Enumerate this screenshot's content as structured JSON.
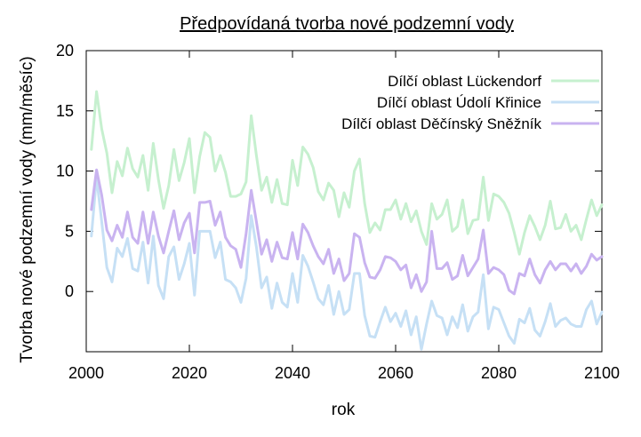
{
  "chart_data": {
    "type": "line",
    "title": "Předpovídaná tvorba nové podzemní vody",
    "xlabel": "rok",
    "ylabel": "Tvorba nové podzemní vody (mm/měsíc)",
    "xlim": [
      2000,
      2100
    ],
    "ylim": [
      -5,
      20
    ],
    "xticks": [
      2000,
      2020,
      2040,
      2060,
      2080,
      2100
    ],
    "yticks": [
      0,
      5,
      10,
      15,
      20
    ],
    "grid": false,
    "legend_position": "top-right",
    "series": [
      {
        "name": "Dílčí oblast Lückendorf",
        "color": "#c6f0cf",
        "x": [
          2001,
          2002,
          2003,
          2004,
          2005,
          2006,
          2007,
          2008,
          2009,
          2010,
          2011,
          2012,
          2013,
          2014,
          2015,
          2016,
          2017,
          2018,
          2019,
          2020,
          2021,
          2022,
          2023,
          2024,
          2025,
          2026,
          2027,
          2028,
          2029,
          2030,
          2031,
          2032,
          2033,
          2034,
          2035,
          2036,
          2037,
          2038,
          2039,
          2040,
          2041,
          2042,
          2043,
          2044,
          2045,
          2046,
          2047,
          2048,
          2049,
          2050,
          2051,
          2052,
          2053,
          2054,
          2055,
          2056,
          2057,
          2058,
          2059,
          2060,
          2061,
          2062,
          2063,
          2064,
          2065,
          2066,
          2067,
          2068,
          2069,
          2070,
          2071,
          2072,
          2073,
          2074,
          2075,
          2076,
          2077,
          2078,
          2079,
          2080,
          2081,
          2082,
          2083,
          2084,
          2085,
          2086,
          2087,
          2088,
          2089,
          2090,
          2091,
          2092,
          2093,
          2094,
          2095,
          2096,
          2097,
          2098,
          2099,
          2100
        ],
        "y": [
          11.8,
          16.6,
          13.5,
          11.5,
          8.2,
          10.8,
          9.6,
          11.9,
          10.2,
          9.5,
          11.3,
          8.4,
          12.3,
          9.3,
          6.9,
          8.8,
          11.8,
          9.2,
          10.7,
          12.7,
          8.2,
          11.2,
          13.2,
          12.8,
          10.0,
          11.3,
          9.9,
          7.9,
          7.9,
          8.1,
          9.1,
          14.6,
          11.3,
          8.4,
          9.5,
          7.4,
          9.3,
          7.3,
          7.2,
          10.9,
          8.8,
          12.0,
          11.4,
          10.3,
          8.3,
          7.6,
          9.0,
          8.4,
          6.2,
          8.2,
          7.0,
          10.0,
          11.0,
          7.3,
          4.9,
          5.7,
          5.1,
          6.8,
          6.8,
          7.6,
          6.0,
          7.3,
          5.8,
          6.7,
          5.0,
          3.9,
          7.3,
          6.0,
          6.4,
          7.6,
          5.0,
          5.4,
          7.6,
          4.8,
          5.9,
          6.0,
          9.5,
          5.9,
          8.1,
          7.9,
          7.4,
          6.5,
          4.9,
          3.1,
          4.9,
          6.3,
          5.4,
          4.3,
          5.5,
          7.5,
          5.2,
          5.3,
          6.4,
          5.0,
          5.5,
          4.3,
          6.0,
          7.6,
          6.3,
          7.2
        ]
      },
      {
        "name": "Dílčí oblast Údolí Křinice",
        "color": "#c6e0f5",
        "x": [
          2001,
          2002,
          2003,
          2004,
          2005,
          2006,
          2007,
          2008,
          2009,
          2010,
          2011,
          2012,
          2013,
          2014,
          2015,
          2016,
          2017,
          2018,
          2019,
          2020,
          2021,
          2022,
          2023,
          2024,
          2025,
          2026,
          2027,
          2028,
          2029,
          2030,
          2031,
          2032,
          2033,
          2034,
          2035,
          2036,
          2037,
          2038,
          2039,
          2040,
          2041,
          2042,
          2043,
          2044,
          2045,
          2046,
          2047,
          2048,
          2049,
          2050,
          2051,
          2052,
          2053,
          2054,
          2055,
          2056,
          2057,
          2058,
          2059,
          2060,
          2061,
          2062,
          2063,
          2064,
          2065,
          2066,
          2067,
          2068,
          2069,
          2070,
          2071,
          2072,
          2073,
          2074,
          2075,
          2076,
          2077,
          2078,
          2079,
          2080,
          2081,
          2082,
          2083,
          2084,
          2085,
          2086,
          2087,
          2088,
          2089,
          2090,
          2091,
          2092,
          2093,
          2094,
          2095,
          2096,
          2097,
          2098,
          2099,
          2100
        ],
        "y": [
          4.6,
          9.5,
          5.8,
          2.0,
          0.8,
          3.6,
          2.9,
          4.4,
          1.9,
          1.7,
          4.1,
          0.7,
          4.6,
          0.5,
          -0.6,
          2.9,
          3.7,
          1.0,
          2.3,
          4.0,
          -0.3,
          5.0,
          5.0,
          5.0,
          2.8,
          4.1,
          1.0,
          0.8,
          0.3,
          -0.9,
          1.1,
          6.3,
          3.7,
          0.3,
          1.2,
          -1.4,
          0.7,
          -0.9,
          -1.3,
          1.5,
          -0.9,
          3.0,
          2.1,
          0.8,
          -0.6,
          -1.1,
          0.5,
          -1.9,
          0.0,
          -1.9,
          -1.5,
          1.5,
          1.5,
          -2.0,
          -3.7,
          -3.8,
          -2.5,
          -1.3,
          -2.5,
          -1.8,
          -2.9,
          -1.6,
          -3.6,
          -2.1,
          -4.8,
          -2.7,
          -0.8,
          -2.0,
          -2.2,
          -3.6,
          -2.1,
          -3.0,
          -1.1,
          -3.3,
          -2.1,
          -1.7,
          1.4,
          -3.1,
          -1.3,
          -1.5,
          -2.6,
          -3.7,
          -4.3,
          -2.3,
          -2.6,
          -1.4,
          -3.2,
          -3.7,
          -2.5,
          -1.0,
          -2.9,
          -2.4,
          -2.2,
          -2.7,
          -2.9,
          -2.9,
          -1.5,
          -0.8,
          -2.7,
          -1.7
        ]
      },
      {
        "name": "Dílčí oblast Děčínský Sněžník",
        "color": "#c9b3f0",
        "x": [
          2001,
          2002,
          2003,
          2004,
          2005,
          2006,
          2007,
          2008,
          2009,
          2010,
          2011,
          2012,
          2013,
          2014,
          2015,
          2016,
          2017,
          2018,
          2019,
          2020,
          2021,
          2022,
          2023,
          2024,
          2025,
          2026,
          2027,
          2028,
          2029,
          2030,
          2031,
          2032,
          2033,
          2034,
          2035,
          2036,
          2037,
          2038,
          2039,
          2040,
          2041,
          2042,
          2043,
          2044,
          2045,
          2046,
          2047,
          2048,
          2049,
          2050,
          2051,
          2052,
          2053,
          2054,
          2055,
          2056,
          2057,
          2058,
          2059,
          2060,
          2061,
          2062,
          2063,
          2064,
          2065,
          2066,
          2067,
          2068,
          2069,
          2070,
          2071,
          2072,
          2073,
          2074,
          2075,
          2076,
          2077,
          2078,
          2079,
          2080,
          2081,
          2082,
          2083,
          2084,
          2085,
          2086,
          2087,
          2088,
          2089,
          2090,
          2091,
          2092,
          2093,
          2094,
          2095,
          2096,
          2097,
          2098,
          2099,
          2100
        ],
        "y": [
          6.8,
          10.1,
          8.0,
          5.1,
          4.2,
          5.5,
          4.5,
          6.6,
          4.5,
          4.0,
          6.6,
          4.0,
          6.6,
          4.6,
          3.2,
          5.0,
          6.7,
          4.3,
          5.7,
          6.5,
          3.2,
          7.4,
          7.4,
          7.5,
          5.5,
          6.6,
          4.5,
          3.8,
          3.5,
          2.0,
          4.8,
          8.4,
          5.8,
          3.1,
          4.3,
          2.5,
          4.1,
          2.8,
          2.7,
          4.9,
          2.7,
          5.6,
          4.9,
          3.8,
          2.9,
          2.3,
          3.5,
          1.5,
          2.7,
          0.9,
          1.5,
          4.8,
          4.5,
          2.4,
          1.2,
          1.1,
          1.8,
          2.9,
          2.8,
          2.5,
          1.8,
          2.2,
          0.3,
          1.4,
          0.0,
          0.8,
          5.0,
          1.9,
          1.9,
          2.4,
          1.0,
          1.3,
          3.0,
          1.3,
          2.0,
          2.7,
          5.1,
          1.5,
          2.0,
          1.8,
          1.4,
          0.1,
          -0.2,
          1.5,
          1.3,
          2.7,
          1.4,
          0.7,
          1.8,
          2.5,
          1.8,
          2.3,
          2.3,
          1.7,
          2.3,
          1.5,
          2.1,
          3.1,
          2.6,
          2.9
        ]
      }
    ]
  }
}
